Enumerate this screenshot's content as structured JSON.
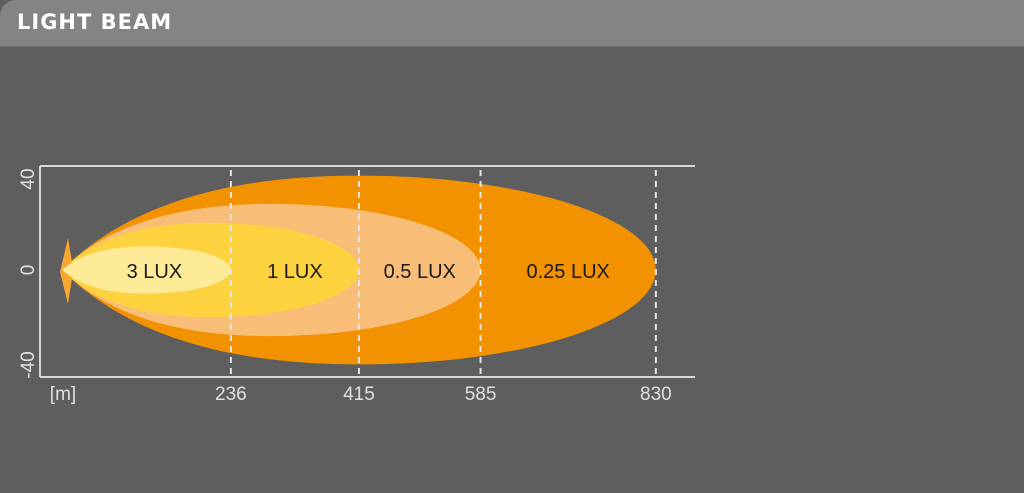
{
  "header": {
    "title": "LIGHT BEAM"
  },
  "chart_data": {
    "type": "area",
    "title": "",
    "x_unit_label": "[m]",
    "xlim": [
      0,
      830
    ],
    "ylim": [
      -40,
      40
    ],
    "x_ticks": [
      236,
      415,
      585,
      830
    ],
    "y_ticks": [
      40,
      0,
      -40
    ],
    "zones": [
      {
        "label": "0.25 LUX",
        "reach": 830,
        "half_width": 40,
        "color": "#f39200"
      },
      {
        "label": "0.5 LUX",
        "reach": 585,
        "half_width": 28,
        "color": "#f8bd76"
      },
      {
        "label": "1 LUX",
        "reach": 415,
        "half_width": 20,
        "color": "#fdd23f"
      },
      {
        "label": "3 LUX",
        "reach": 236,
        "half_width": 10,
        "color": "#feeb98"
      }
    ],
    "colors": {
      "background": "#5e5e5e",
      "axis": "#d9d9d9",
      "tick_text": "#e0e0e0"
    }
  }
}
